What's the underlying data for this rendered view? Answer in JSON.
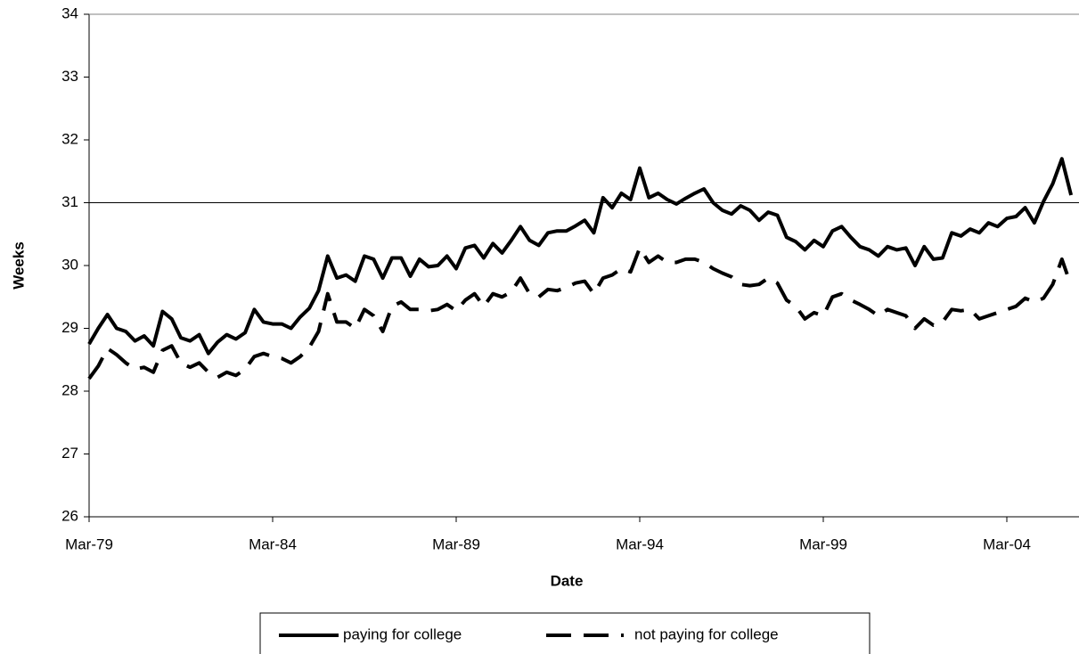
{
  "chart_data": {
    "type": "line",
    "x_label": "Date",
    "y_label": "Weeks",
    "categories": [
      "Mar-79",
      null,
      null,
      null,
      null,
      null,
      null,
      null,
      null,
      null,
      null,
      null,
      null,
      null,
      null,
      null,
      null,
      null,
      null,
      null,
      "Mar-84",
      null,
      null,
      null,
      null,
      null,
      null,
      null,
      null,
      null,
      null,
      null,
      null,
      null,
      null,
      null,
      null,
      null,
      null,
      null,
      "Mar-89",
      null,
      null,
      null,
      null,
      null,
      null,
      null,
      null,
      null,
      null,
      null,
      null,
      null,
      null,
      null,
      null,
      null,
      null,
      null,
      "Mar-94",
      null,
      null,
      null,
      null,
      null,
      null,
      null,
      null,
      null,
      null,
      null,
      null,
      null,
      null,
      null,
      null,
      null,
      null,
      null,
      "Mar-99",
      null,
      null,
      null,
      null,
      null,
      null,
      null,
      null,
      null,
      null,
      null,
      null,
      null,
      null,
      null,
      null,
      null,
      null,
      null,
      "Mar-04",
      null,
      null,
      null,
      null,
      null,
      null,
      null
    ],
    "series": [
      {
        "name": "paying for college",
        "color": "#000000",
        "dashed": false,
        "values": [
          28.75,
          29.0,
          29.22,
          29.0,
          28.95,
          28.8,
          28.88,
          28.72,
          29.27,
          29.15,
          28.85,
          28.8,
          28.9,
          28.6,
          28.78,
          28.9,
          28.83,
          28.93,
          29.3,
          29.1,
          29.07,
          29.07,
          29.0,
          29.18,
          29.32,
          29.6,
          30.15,
          29.8,
          29.85,
          29.75,
          30.15,
          30.1,
          29.8,
          30.12,
          30.12,
          29.83,
          30.1,
          29.98,
          30.0,
          30.15,
          29.95,
          30.28,
          30.32,
          30.12,
          30.35,
          30.2,
          30.4,
          30.62,
          30.4,
          30.32,
          30.52,
          30.55,
          30.55,
          30.63,
          30.72,
          30.52,
          31.08,
          30.92,
          31.15,
          31.05,
          31.55,
          31.08,
          31.15,
          31.05,
          30.98,
          31.07,
          31.15,
          31.22,
          31.0,
          30.88,
          30.82,
          30.95,
          30.88,
          30.72,
          30.85,
          30.8,
          30.45,
          30.38,
          30.25,
          30.4,
          30.3,
          30.55,
          30.62,
          30.45,
          30.3,
          30.25,
          30.15,
          30.3,
          30.25,
          30.28,
          30.0,
          30.3,
          30.1,
          30.12,
          30.52,
          30.47,
          30.58,
          30.52,
          30.68,
          30.62,
          30.75,
          30.78,
          30.92,
          30.68,
          31.02,
          31.3,
          31.7,
          31.12
        ]
      },
      {
        "name": "not paying for college",
        "color": "#000000",
        "dashed": true,
        "values": [
          28.2,
          28.4,
          28.68,
          28.58,
          28.45,
          28.35,
          28.38,
          28.3,
          28.65,
          28.72,
          28.45,
          28.38,
          28.45,
          28.3,
          28.22,
          28.3,
          28.25,
          28.35,
          28.55,
          28.6,
          28.55,
          28.52,
          28.45,
          28.55,
          28.7,
          28.95,
          29.55,
          29.1,
          29.1,
          29.0,
          29.3,
          29.2,
          28.95,
          29.35,
          29.42,
          29.3,
          29.3,
          29.28,
          29.3,
          29.38,
          29.28,
          29.45,
          29.55,
          29.35,
          29.55,
          29.5,
          29.58,
          29.8,
          29.55,
          29.5,
          29.62,
          29.6,
          29.65,
          29.72,
          29.75,
          29.55,
          29.8,
          29.85,
          29.95,
          29.9,
          30.28,
          30.05,
          30.15,
          30.05,
          30.05,
          30.1,
          30.1,
          30.05,
          29.95,
          29.88,
          29.82,
          29.7,
          29.68,
          29.7,
          29.8,
          29.72,
          29.45,
          29.35,
          29.15,
          29.25,
          29.2,
          29.5,
          29.55,
          29.45,
          29.38,
          29.3,
          29.2,
          29.3,
          29.25,
          29.2,
          29.0,
          29.15,
          29.05,
          29.1,
          29.3,
          29.28,
          29.3,
          29.15,
          29.2,
          29.25,
          29.3,
          29.35,
          29.48,
          29.42,
          29.48,
          29.7,
          30.1,
          29.68
        ]
      }
    ],
    "ylim": [
      26,
      34
    ],
    "yticks": [
      26,
      27,
      28,
      29,
      30,
      31,
      32,
      33,
      34
    ],
    "reference_lines": [
      31
    ],
    "legend": "bottom"
  }
}
